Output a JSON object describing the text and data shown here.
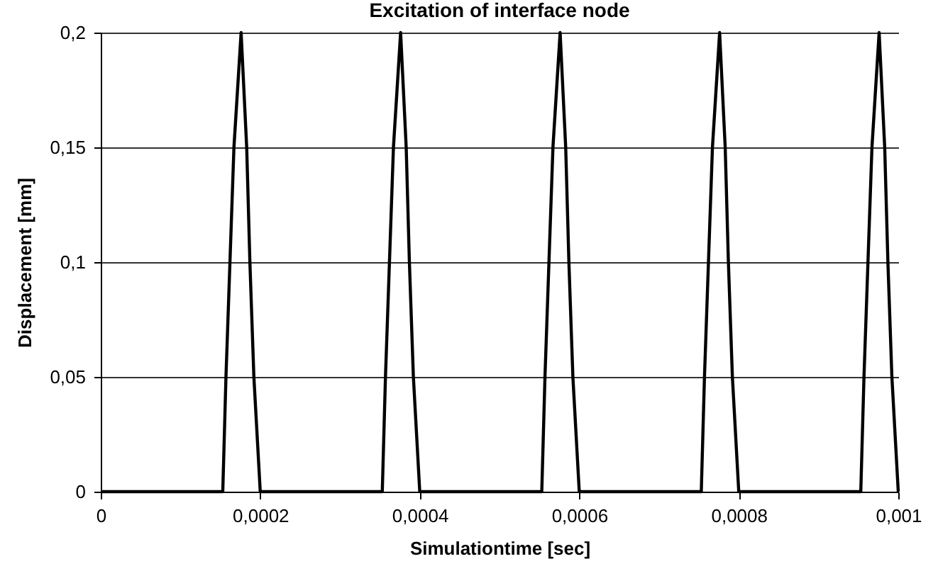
{
  "chart_data": {
    "type": "line",
    "title": "Excitation of interface node",
    "xlabel": "Simulationtime [sec]",
    "ylabel": "Displacement [mm]",
    "x": [
      0,
      0.000153,
      0.000157,
      0.000162,
      0.000167,
      0.000176,
      0.000183,
      0.000187,
      0.000192,
      0.0002,
      0.000353,
      0.000357,
      0.000362,
      0.000367,
      0.000376,
      0.000383,
      0.000387,
      0.000392,
      0.0004,
      0.000553,
      0.000557,
      0.000562,
      0.000567,
      0.000576,
      0.000583,
      0.000587,
      0.000592,
      0.0006,
      0.000753,
      0.000757,
      0.000762,
      0.000767,
      0.000776,
      0.000783,
      0.000787,
      0.000792,
      0.0008,
      0.000953,
      0.000957,
      0.000962,
      0.000967,
      0.000976,
      0.000983,
      0.000987,
      0.000992,
      0.001
    ],
    "series": [
      {
        "color": "#000000",
        "values": [
          0,
          0,
          0.05,
          0.1,
          0.15,
          0.2,
          0.15,
          0.1,
          0.05,
          0,
          0,
          0.05,
          0.1,
          0.15,
          0.2,
          0.15,
          0.1,
          0.05,
          0,
          0,
          0.05,
          0.1,
          0.15,
          0.2,
          0.15,
          0.1,
          0.05,
          0,
          0,
          0.05,
          0.1,
          0.15,
          0.2,
          0.15,
          0.1,
          0.05,
          0,
          0,
          0.05,
          0.1,
          0.15,
          0.2,
          0.15,
          0.1,
          0.05,
          0
        ]
      }
    ],
    "xlim": [
      0,
      0.001
    ],
    "xticks": [
      0,
      {
        "value": 0.0002,
        "label": "0,0002"
      },
      {
        "value": 0.0004,
        "label": "0,0004"
      },
      {
        "value": 0.0006,
        "label": "0,0006"
      },
      {
        "value": 0.0008,
        "label": "0,0008"
      },
      {
        "value": 0.001,
        "label": "0,001"
      }
    ],
    "ylim": [
      0,
      0.2
    ],
    "yticks": [
      0,
      {
        "value": 0.05,
        "label": "0,05"
      },
      {
        "value": 0.1,
        "label": "0,1"
      },
      {
        "value": 0.15,
        "label": "0,15"
      },
      {
        "value": 0.2,
        "label": "0,2"
      }
    ],
    "grid": "y",
    "marker": "none",
    "line_style": "solid"
  }
}
